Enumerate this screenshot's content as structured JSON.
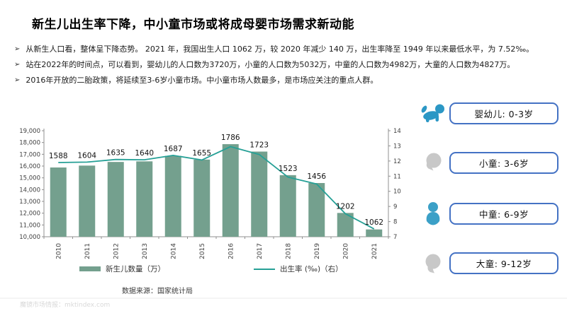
{
  "slide": {
    "title": "新生儿出生率下降，中小童市场或将成母婴市场需求新动能",
    "bullet_marker": "➢",
    "bullets": [
      "从新生人口看，整体呈下降态势。 2021 年，我国出生人口 1062 万，较 2020 年减少 140 万，出生率降至 1949 年以来最低水平，为 7.52‰。",
      "站在2022年的时间点，可以看到，婴幼儿的人口数为3720万，小童的人口数为5032万，中童的人口数为4982万，大童的人口数为4827万。",
      "2016年开放的二胎政策，将延续至3-6岁小童市场。中小童市场人数最多，是市场应关注的重点人群。"
    ],
    "source": "数据来源：国家统计局",
    "watermark": "魔镜市场情报：mktindex.com"
  },
  "chart_data": {
    "type": "bar",
    "title": "",
    "categories": [
      "2010",
      "2011",
      "2012",
      "2013",
      "2014",
      "2015",
      "2016",
      "2017",
      "2018",
      "2019",
      "2020",
      "2021"
    ],
    "series": [
      {
        "name": "新生儿数量（万）",
        "type": "bar",
        "axis": "left",
        "color": "#74a08e",
        "values": [
          1588,
          1604,
          1635,
          1640,
          1687,
          1655,
          1786,
          1723,
          1523,
          1456,
          1202,
          1062
        ]
      },
      {
        "name": "出生率 (‰)（右）",
        "type": "line",
        "axis": "right",
        "color": "#26a096",
        "values": [
          11.9,
          11.93,
          12.1,
          12.08,
          12.37,
          12.07,
          12.95,
          12.43,
          10.94,
          10.48,
          8.52,
          7.52
        ]
      }
    ],
    "left_axis": {
      "min": 10000,
      "max": 19000,
      "step": 1000,
      "tick_labels": [
        "19,000",
        "18,000",
        "17,000",
        "16,000",
        "15,000",
        "14,000",
        "13,000",
        "12,000",
        "11,000",
        "10,000"
      ]
    },
    "right_axis": {
      "min": 7,
      "max": 14,
      "step": 1,
      "tick_labels": [
        "14",
        "13",
        "12",
        "11",
        "10",
        "9",
        "8",
        "7"
      ]
    },
    "grid": false,
    "legend_position": "bottom"
  },
  "age_groups": [
    {
      "label": "婴幼儿: 0-3岁",
      "icon": "baby-crawl-icon",
      "icon_color": "#2b97c5"
    },
    {
      "label": "小童: 3-6岁",
      "icon": "small-child-head-icon",
      "icon_color": "#c8c8c8"
    },
    {
      "label": "中童: 6-9岁",
      "icon": "mid-child-bust-icon",
      "icon_color": "#3ba0c7"
    },
    {
      "label": "大童: 9-12岁",
      "icon": "big-child-head-icon",
      "icon_color": "#c8c8c8"
    }
  ],
  "colors": {
    "axis": "#909090",
    "tick_text": "#404040",
    "data_label": "#111111",
    "box_border": "#4472c4"
  }
}
